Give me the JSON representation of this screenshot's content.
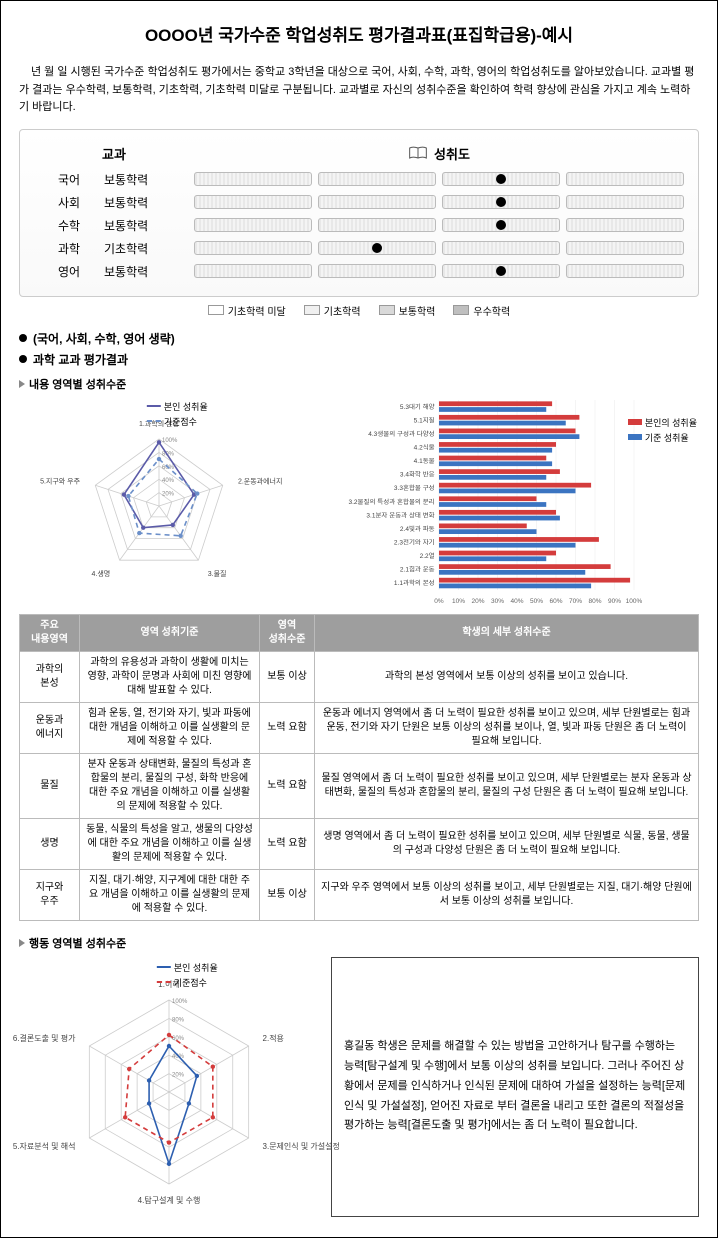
{
  "title": "OOOO년 국가수준 학업성취도 평가결과표(표집학급용)-예시",
  "intro": "년   월   일 시행된 국가수준 학업성취도 평가에서는 중학교 3학년을 대상으로 국어, 사회, 수학, 과학, 영어의 학업성취도를 알아보았습니다. 교과별 평가 결과는 우수학력, 보통학력, 기초학력, 기초학력 미달로 구분됩니다. 교과별로 자신의 성취수준을 확인하여 학력 향상에 관심을 가지고 계속 노력하기 바랍니다.",
  "ach_header_left": "교과",
  "ach_header_right": "성취도",
  "subjects": [
    {
      "name": "국어",
      "level": "보통학력",
      "segActive": 2
    },
    {
      "name": "사회",
      "level": "보통학력",
      "segActive": 2
    },
    {
      "name": "수학",
      "level": "보통학력",
      "segActive": 2
    },
    {
      "name": "과학",
      "level": "기초학력",
      "segActive": 1
    },
    {
      "name": "영어",
      "level": "보통학력",
      "segActive": 2
    }
  ],
  "legend": [
    {
      "label": "기초학력 미달",
      "bg": "#ffffff"
    },
    {
      "label": "기초학력",
      "bg": "#f0f0f0"
    },
    {
      "label": "보통학력",
      "bg": "#d9d9d9"
    },
    {
      "label": "우수학력",
      "bg": "#bfbfbf"
    }
  ],
  "bullet1": "(국어, 사회, 수학, 영어 생략)",
  "bullet2": "과학 교과 평가결과",
  "sub1": "내용 영역별 성취수준",
  "radar1": {
    "labels": [
      "1.과학의 본성",
      "2.운동과에너지",
      "3.물질",
      "4.생명",
      "5.지구와 우주"
    ],
    "series": [
      {
        "name": "본인 성취율",
        "color": "#5b5ba8",
        "dash": "none",
        "values": [
          95,
          55,
          35,
          40,
          55
        ]
      },
      {
        "name": "기준점수",
        "color": "#6b8fc9",
        "dash": "5,4",
        "values": [
          70,
          60,
          55,
          50,
          48
        ]
      }
    ],
    "rings": [
      20,
      40,
      60,
      80,
      100
    ],
    "bg": "#ffffff"
  },
  "hbar": {
    "categories": [
      "5.3대기 해양",
      "5.1지질",
      "4.3생물의 구성과 다양성",
      "4.2식물",
      "4.1동물",
      "3.4화학 반응",
      "3.3혼합물 구성",
      "3.2물질의 특성과 혼합물의 분리",
      "3.1분자 운동과 상태 변화",
      "2.4빛과 파동",
      "2.3전기와 자기",
      "2.2열",
      "2.1힘과 운동",
      "1.1과학의 본성"
    ],
    "series": [
      {
        "name": "본인의 성취율",
        "color": "#d43c3c",
        "values": [
          58,
          72,
          70,
          60,
          55,
          62,
          78,
          50,
          60,
          45,
          82,
          60,
          88,
          98
        ]
      },
      {
        "name": "기준 성취율",
        "color": "#3b74c1",
        "values": [
          55,
          65,
          72,
          58,
          58,
          55,
          70,
          55,
          62,
          50,
          70,
          55,
          75,
          78
        ]
      }
    ],
    "xmax": 100,
    "xticks": [
      0,
      10,
      20,
      30,
      40,
      50,
      60,
      70,
      80,
      90,
      100
    ],
    "bg": "#ffffff"
  },
  "table_headers": {
    "c1": "주요\n내용영역",
    "c2": "영역 성취기준",
    "c3": "영역\n성취수준",
    "c4": "학생의 세부 성취수준"
  },
  "table_rows": [
    {
      "area": "과학의\n본성",
      "crit": "과학의 유용성과 과학이 생활에 미치는 영향, 과학이 문명과 사회에 미친 영향에 대해 발표할 수 있다.",
      "level": "보통 이상",
      "detail": "과학의 본성 영역에서 보통 이상의 성취를 보이고 있습니다."
    },
    {
      "area": "운동과\n에너지",
      "crit": "힘과 운동, 열, 전기와 자기, 빛과 파동에 대한 개념을 이해하고 이를 실생활의 문제에 적용할 수 있다.",
      "level": "노력 요함",
      "detail": "운동과 에너지 영역에서 좀 더 노력이 필요한 성취를 보이고 있으며, 세부 단원별로는 힘과 운동, 전기와 자기 단원은 보통 이상의 성취를 보이나, 열, 빛과 파동 단원은 좀 더 노력이 필요해 보입니다."
    },
    {
      "area": "물질",
      "crit": "분자 운동과 상태변화, 물질의 특성과 혼합물의 분리, 물질의 구성, 화학 반응에 대한 주요 개념을 이해하고 이를 실생활의 문제에 적용할 수 있다.",
      "level": "노력 요함",
      "detail": "물질 영역에서 좀 더 노력이 필요한 성취를 보이고 있으며, 세부 단원별로는 분자 운동과 상태변화, 물질의 특성과 혼합물의 분리, 물질의 구성 단원은 좀 더 노력이 필요해 보입니다."
    },
    {
      "area": "생명",
      "crit": "동물, 식물의 특성을 알고, 생물의 다양성에 대한 주요 개념을 이해하고 이를 실생활의 문제에 적용할 수 있다.",
      "level": "노력 요함",
      "detail": "생명 영역에서 좀 더 노력이 필요한 성취를 보이고 있으며, 세부 단원별로 식물, 동물, 생물의 구성과 다양성 단원은 좀 더 노력이 필요해 보입니다."
    },
    {
      "area": "지구와\n우주",
      "crit": "지질, 대기·해양, 지구계에 대한 대한 주요 개념을 이해하고 이를 실생활의 문제에 적용할 수 있다.",
      "level": "보통 이상",
      "detail": "지구와 우주 영역에서 보통 이상의 성취를 보이고, 세부 단원별로는 지질, 대기·해양 단원에서 보통 이상의 성취를 보입니다."
    }
  ],
  "sub2": "행동 영역별 성취수준",
  "radar2": {
    "labels": [
      "1.이해",
      "2.적용",
      "3.문제인식 및 가설설정",
      "4.탐구설계 및 수행",
      "5.자료분석 및 해석",
      "6.결론도출 및 평가"
    ],
    "series": [
      {
        "name": "본인 성취율",
        "color": "#2d5fb0",
        "dash": "none",
        "values": [
          50,
          35,
          25,
          78,
          25,
          25
        ]
      },
      {
        "name": "기준점수",
        "color": "#d43c3c",
        "dash": "5,4",
        "values": [
          62,
          55,
          55,
          55,
          55,
          50
        ]
      }
    ],
    "rings": [
      20,
      40,
      60,
      80,
      100
    ]
  },
  "behavior_text": "홍길동 학생은 문제를 해결할 수 있는 방법을 고안하거나 탐구를 수행하는 능력[탐구설계 및 수행]에서 보통 이상의 성취를 보입니다. 그러나 주어진 상황에서 문제를 인식하거나 인식된 문제에 대하여 가설을 설정하는 능력[문제인식 및 가설설정], 얻어진 자료로 부터 결론을 내리고 또한 결론의 적절성을 평가하는 능력[결론도출 및 평가]에서는 좀 더 노력이 필요합니다."
}
